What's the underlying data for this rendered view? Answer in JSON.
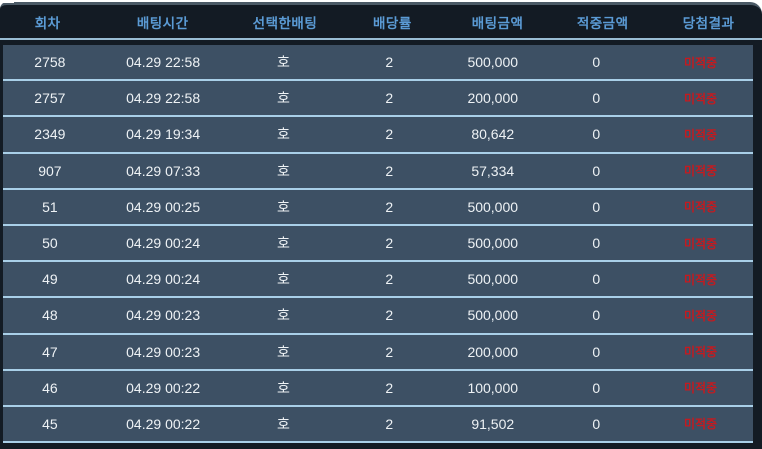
{
  "panel": {
    "background": "#131b24",
    "top_border_color": "#4b5a66"
  },
  "table": {
    "columns": [
      {
        "key": "round",
        "label": "회차"
      },
      {
        "key": "time",
        "label": "배팅시간"
      },
      {
        "key": "pick",
        "label": "선택한배팅"
      },
      {
        "key": "odds",
        "label": "배당률"
      },
      {
        "key": "bet_amount",
        "label": "배팅금액"
      },
      {
        "key": "win_amount",
        "label": "적중금액"
      },
      {
        "key": "result",
        "label": "당첨결과"
      }
    ],
    "rows": [
      {
        "round": "2758",
        "time": "04.29 22:58",
        "pick": "호",
        "odds": "2",
        "bet_amount": "500,000",
        "win_amount": "0",
        "result": "미적중"
      },
      {
        "round": "2757",
        "time": "04.29 22:58",
        "pick": "호",
        "odds": "2",
        "bet_amount": "200,000",
        "win_amount": "0",
        "result": "미적중"
      },
      {
        "round": "2349",
        "time": "04.29 19:34",
        "pick": "호",
        "odds": "2",
        "bet_amount": "80,642",
        "win_amount": "0",
        "result": "미적중"
      },
      {
        "round": "907",
        "time": "04.29 07:33",
        "pick": "호",
        "odds": "2",
        "bet_amount": "57,334",
        "win_amount": "0",
        "result": "미적중"
      },
      {
        "round": "51",
        "time": "04.29 00:25",
        "pick": "호",
        "odds": "2",
        "bet_amount": "500,000",
        "win_amount": "0",
        "result": "미적중"
      },
      {
        "round": "50",
        "time": "04.29 00:24",
        "pick": "호",
        "odds": "2",
        "bet_amount": "500,000",
        "win_amount": "0",
        "result": "미적중"
      },
      {
        "round": "49",
        "time": "04.29 00:24",
        "pick": "호",
        "odds": "2",
        "bet_amount": "500,000",
        "win_amount": "0",
        "result": "미적중"
      },
      {
        "round": "48",
        "time": "04.29 00:23",
        "pick": "호",
        "odds": "2",
        "bet_amount": "500,000",
        "win_amount": "0",
        "result": "미적중"
      },
      {
        "round": "47",
        "time": "04.29 00:23",
        "pick": "호",
        "odds": "2",
        "bet_amount": "200,000",
        "win_amount": "0",
        "result": "미적중"
      },
      {
        "round": "46",
        "time": "04.29 00:22",
        "pick": "호",
        "odds": "2",
        "bet_amount": "100,000",
        "win_amount": "0",
        "result": "미적중"
      },
      {
        "round": "45",
        "time": "04.29 00:22",
        "pick": "호",
        "odds": "2",
        "bet_amount": "91,502",
        "win_amount": "0",
        "result": "미적중"
      }
    ],
    "colors": {
      "header_text": "#5b9bd5",
      "row_background": "#3d5064",
      "row_text": "#eef2f5",
      "divider": "#a9cfe8",
      "result_miss": "#c51a1f"
    }
  }
}
